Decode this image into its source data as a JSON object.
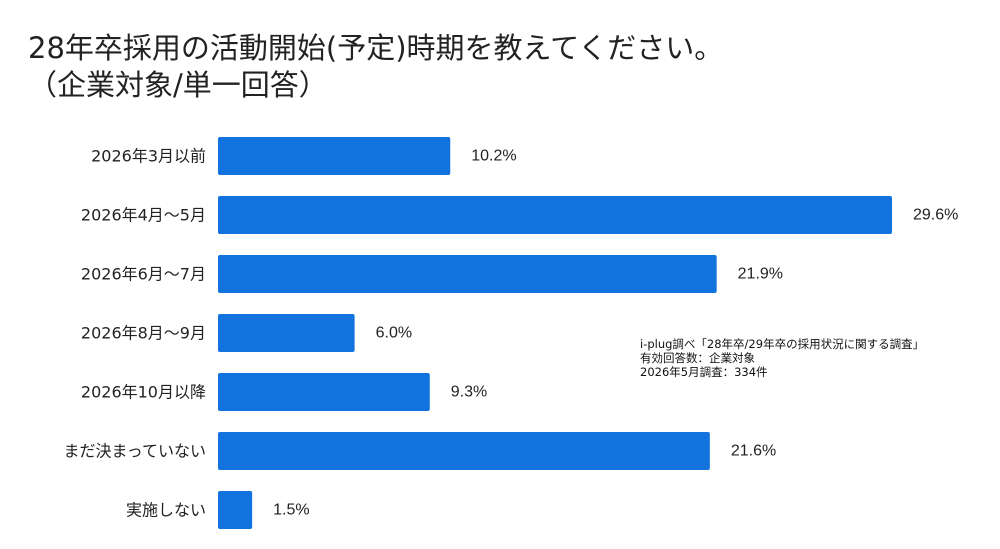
{
  "title": {
    "line1": "28年卒採用の活動開始(予定)時期を教えてください。",
    "line2": "（企業対象/単一回答）"
  },
  "note": {
    "line1": "i-plug調べ「28年卒/29年卒の採用状況に関する調査」",
    "line2": "有効回答数：企業対象",
    "line3": "2026年5月調査：334件"
  },
  "chart_data": {
    "type": "bar",
    "orientation": "horizontal",
    "categories": [
      "2026年3月以前",
      "2026年4月～5月",
      "2026年6月～7月",
      "2026年8月～9月",
      "2026年10月以降",
      "まだ決まっていない",
      "実施しない"
    ],
    "values": [
      10.2,
      29.6,
      21.9,
      6.0,
      9.3,
      21.6,
      1.5
    ],
    "value_labels": [
      "10.2%",
      "29.6%",
      "21.9%",
      "6.0%",
      "9.3%",
      "21.6%",
      "1.5%"
    ],
    "unit": "%",
    "xlim": [
      0,
      29.6
    ],
    "grid": false,
    "legend": "none",
    "colors": {
      "bar": "#1273DE",
      "text": "#222222"
    }
  }
}
